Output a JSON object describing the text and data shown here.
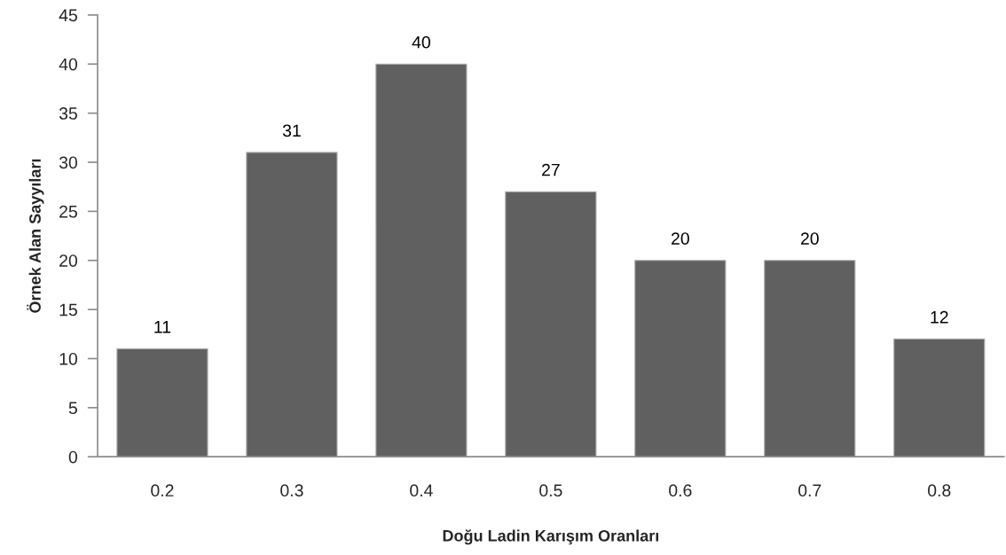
{
  "chart_data": {
    "type": "bar",
    "xlabel": "Doğu Ladin Karışım Oranları",
    "ylabel": "Örnek Alan Sayyıları",
    "categories": [
      "0.2",
      "0.3",
      "0.4",
      "0.5",
      "0.6",
      "0.7",
      "0.8"
    ],
    "values": [
      11,
      31,
      40,
      27,
      20,
      20,
      12
    ],
    "color": "#606060",
    "ylim": [
      0,
      45
    ],
    "yticks": [
      0,
      5,
      10,
      15,
      20,
      25,
      30,
      35,
      40,
      45
    ],
    "data_labels": true,
    "grid": false
  }
}
